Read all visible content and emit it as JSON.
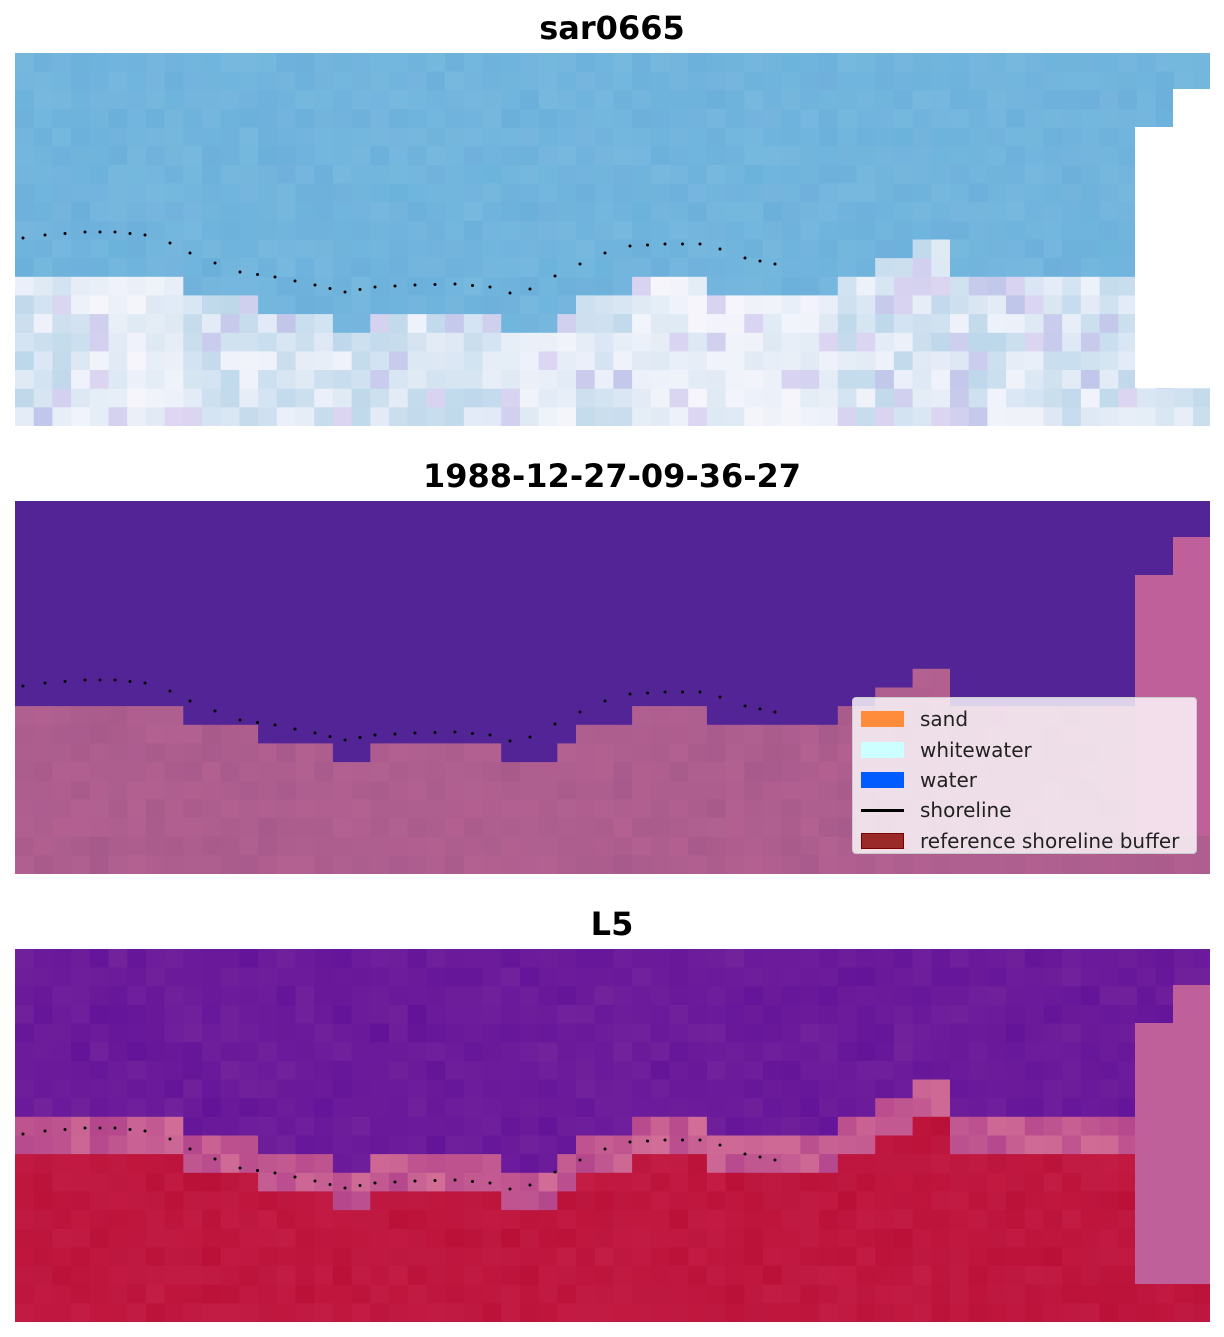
{
  "panels": [
    {
      "title": "sar0665",
      "kind": "rgb"
    },
    {
      "title": "1988-12-27-09-36-27",
      "kind": "classified"
    },
    {
      "title": "L5",
      "kind": "index"
    }
  ],
  "legend": {
    "items": [
      {
        "label": "sand",
        "type": "patch",
        "color": "#ff8c3a",
        "edge": "#ff8c3a"
      },
      {
        "label": "whitewater",
        "type": "patch",
        "color": "#ccffff",
        "edge": "#ccffff"
      },
      {
        "label": "water",
        "type": "patch",
        "color": "#005cff",
        "edge": "#005cff"
      },
      {
        "label": "shoreline",
        "type": "line",
        "color": "#000000"
      },
      {
        "label": "reference shoreline buffer",
        "type": "patch",
        "color": "#9a2a2a",
        "edge": "#7a0000"
      }
    ]
  },
  "colors": {
    "sky_water": "#6db4dc",
    "classified_water": "#532496",
    "classified_land": "#b06090",
    "index_water": "#6a1a9a",
    "index_land": "#c0163e",
    "nodata_overlay": "#c0609a",
    "shoreline": "#000000"
  }
}
